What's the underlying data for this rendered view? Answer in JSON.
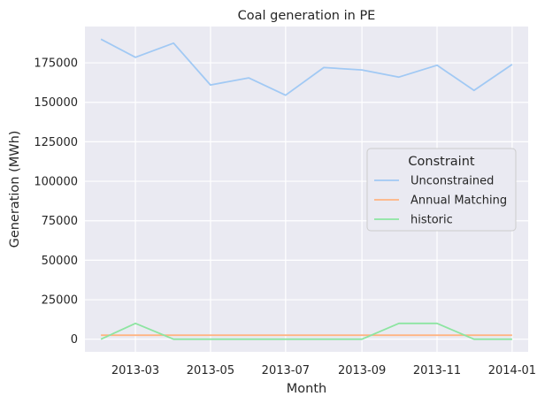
{
  "chart_data": {
    "type": "line",
    "title": "Coal generation in PE",
    "xlabel": "Month",
    "ylabel": "Generation (MWh)",
    "x": [
      "2013-02-01",
      "2013-03-01",
      "2013-04-01",
      "2013-05-01",
      "2013-06-01",
      "2013-07-01",
      "2013-08-01",
      "2013-09-01",
      "2013-10-01",
      "2013-11-01",
      "2013-12-01",
      "2014-01-01"
    ],
    "xticks": [
      "2013-03",
      "2013-05",
      "2013-07",
      "2013-09",
      "2013-11",
      "2014-01"
    ],
    "xlim": [
      "2013-01-19",
      "2014-01-14"
    ],
    "ylim": [
      -8000,
      198000
    ],
    "yticks": [
      0,
      25000,
      50000,
      75000,
      100000,
      125000,
      150000,
      175000
    ],
    "grid": true,
    "legend": {
      "title": "Constraint",
      "position": "center-right"
    },
    "series": [
      {
        "name": "Unconstrained",
        "color": "#a1c9f4",
        "values": [
          190000,
          178500,
          187500,
          161000,
          165500,
          154500,
          172000,
          170500,
          166000,
          173500,
          157500,
          174000
        ]
      },
      {
        "name": "Annual Matching",
        "color": "#ffb482",
        "values": [
          2500,
          2500,
          2500,
          2500,
          2500,
          2500,
          2500,
          2500,
          2500,
          2500,
          2500,
          2500
        ]
      },
      {
        "name": "historic",
        "color": "#8de5a1",
        "values": [
          0,
          10000,
          0,
          0,
          0,
          0,
          0,
          0,
          10000,
          10000,
          0,
          0
        ]
      }
    ]
  }
}
